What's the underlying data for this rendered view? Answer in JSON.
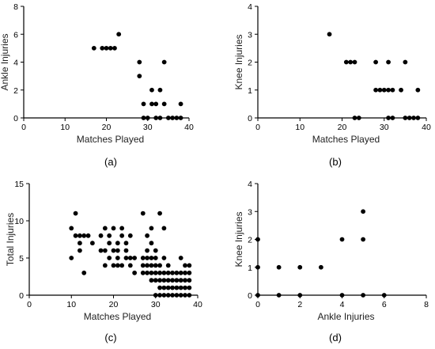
{
  "chart_data": [
    {
      "id": "a",
      "type": "scatter",
      "panel_label": "(a)",
      "xlabel": "Matches Played",
      "ylabel": "Ankle Injuries",
      "xlim": [
        0,
        40
      ],
      "ylim": [
        0,
        8
      ],
      "xticks": [
        0,
        10,
        20,
        30,
        40
      ],
      "yticks": [
        0,
        2,
        4,
        6,
        8
      ],
      "points": [
        [
          17,
          5
        ],
        [
          19,
          5
        ],
        [
          20,
          5
        ],
        [
          21,
          5
        ],
        [
          22,
          5
        ],
        [
          23,
          6
        ],
        [
          28,
          4
        ],
        [
          28,
          3
        ],
        [
          29,
          0
        ],
        [
          29,
          1
        ],
        [
          30,
          0
        ],
        [
          31,
          2
        ],
        [
          31,
          1
        ],
        [
          32,
          0
        ],
        [
          32,
          1
        ],
        [
          33,
          2
        ],
        [
          33,
          0
        ],
        [
          34,
          1
        ],
        [
          34,
          4
        ],
        [
          35,
          0
        ],
        [
          36,
          0
        ],
        [
          37,
          0
        ],
        [
          38,
          0
        ],
        [
          38,
          1
        ]
      ]
    },
    {
      "id": "b",
      "type": "scatter",
      "panel_label": "(b)",
      "xlabel": "Matches Played",
      "ylabel": "Knee Injuries",
      "xlim": [
        0,
        40
      ],
      "ylim": [
        0,
        4
      ],
      "xticks": [
        0,
        10,
        20,
        30,
        40
      ],
      "yticks": [
        0,
        1,
        2,
        3,
        4
      ],
      "points": [
        [
          17,
          3
        ],
        [
          21,
          2
        ],
        [
          22,
          2
        ],
        [
          23,
          2
        ],
        [
          23,
          0
        ],
        [
          24,
          0
        ],
        [
          28,
          2
        ],
        [
          28,
          1
        ],
        [
          29,
          1
        ],
        [
          30,
          1
        ],
        [
          31,
          2
        ],
        [
          31,
          1
        ],
        [
          32,
          1
        ],
        [
          31,
          0
        ],
        [
          32,
          0
        ],
        [
          34,
          1
        ],
        [
          35,
          2
        ],
        [
          35,
          0
        ],
        [
          36,
          0
        ],
        [
          37,
          0
        ],
        [
          38,
          0
        ],
        [
          38,
          1
        ]
      ]
    },
    {
      "id": "c",
      "type": "scatter",
      "panel_label": "(c)",
      "xlabel": "Matches Played",
      "ylabel": "Total Injuries",
      "xlim": [
        0,
        40
      ],
      "ylim": [
        0,
        15
      ],
      "xticks": [
        0,
        10,
        20,
        30,
        40
      ],
      "yticks": [
        0,
        5,
        10,
        15
      ],
      "points": [
        [
          10,
          9
        ],
        [
          10,
          5
        ],
        [
          11,
          11
        ],
        [
          11,
          8
        ],
        [
          12,
          8
        ],
        [
          12,
          6
        ],
        [
          12,
          7
        ],
        [
          13,
          3
        ],
        [
          13,
          8
        ],
        [
          14,
          8
        ],
        [
          15,
          7
        ],
        [
          17,
          8
        ],
        [
          17,
          6
        ],
        [
          18,
          9
        ],
        [
          18,
          6
        ],
        [
          18,
          4
        ],
        [
          19,
          8
        ],
        [
          19,
          7
        ],
        [
          19,
          5
        ],
        [
          20,
          9
        ],
        [
          20,
          6
        ],
        [
          20,
          4
        ],
        [
          21,
          7
        ],
        [
          21,
          5
        ],
        [
          21,
          6
        ],
        [
          21,
          4
        ],
        [
          22,
          8
        ],
        [
          22,
          9
        ],
        [
          22,
          4
        ],
        [
          23,
          5
        ],
        [
          23,
          6
        ],
        [
          23,
          7
        ],
        [
          24,
          8
        ],
        [
          24,
          5
        ],
        [
          24,
          4
        ],
        [
          25,
          5
        ],
        [
          25,
          3
        ],
        [
          27,
          11
        ],
        [
          27,
          5
        ],
        [
          27,
          4
        ],
        [
          27,
          3
        ],
        [
          28,
          6
        ],
        [
          28,
          5
        ],
        [
          28,
          4
        ],
        [
          28,
          3
        ],
        [
          28,
          8
        ],
        [
          29,
          9
        ],
        [
          29,
          7
        ],
        [
          29,
          5
        ],
        [
          29,
          4
        ],
        [
          29,
          3
        ],
        [
          29,
          2
        ],
        [
          30,
          6
        ],
        [
          30,
          5
        ],
        [
          30,
          4
        ],
        [
          30,
          3
        ],
        [
          30,
          2
        ],
        [
          30,
          0
        ],
        [
          31,
          11
        ],
        [
          31,
          4
        ],
        [
          31,
          3
        ],
        [
          31,
          2
        ],
        [
          31,
          1
        ],
        [
          31,
          0
        ],
        [
          32,
          9
        ],
        [
          32,
          5
        ],
        [
          32,
          3
        ],
        [
          32,
          2
        ],
        [
          32,
          1
        ],
        [
          32,
          0
        ],
        [
          33,
          4
        ],
        [
          33,
          3
        ],
        [
          33,
          2
        ],
        [
          33,
          1
        ],
        [
          33,
          0
        ],
        [
          34,
          3
        ],
        [
          34,
          2
        ],
        [
          34,
          1
        ],
        [
          34,
          0
        ],
        [
          35,
          3
        ],
        [
          35,
          2
        ],
        [
          35,
          1
        ],
        [
          35,
          0
        ],
        [
          36,
          5
        ],
        [
          36,
          3
        ],
        [
          36,
          2
        ],
        [
          36,
          1
        ],
        [
          36,
          0
        ],
        [
          37,
          4
        ],
        [
          37,
          3
        ],
        [
          37,
          2
        ],
        [
          37,
          1
        ],
        [
          37,
          0
        ],
        [
          38,
          4
        ],
        [
          38,
          3
        ],
        [
          38,
          2
        ],
        [
          38,
          1
        ],
        [
          38,
          0
        ]
      ]
    },
    {
      "id": "d",
      "type": "scatter",
      "panel_label": "(d)",
      "xlabel": "Ankle Injuries",
      "ylabel": "Knee Injuries",
      "xlim": [
        0,
        8
      ],
      "ylim": [
        0,
        4
      ],
      "xticks": [
        0,
        2,
        4,
        6,
        8
      ],
      "yticks": [
        0,
        1,
        2,
        3,
        4
      ],
      "points": [
        [
          0,
          2
        ],
        [
          0,
          1
        ],
        [
          0,
          0
        ],
        [
          1,
          1
        ],
        [
          1,
          0
        ],
        [
          2,
          1
        ],
        [
          2,
          0
        ],
        [
          3,
          1
        ],
        [
          4,
          2
        ],
        [
          4,
          0
        ],
        [
          5,
          3
        ],
        [
          5,
          2
        ],
        [
          5,
          0
        ],
        [
          6,
          0
        ]
      ]
    }
  ]
}
